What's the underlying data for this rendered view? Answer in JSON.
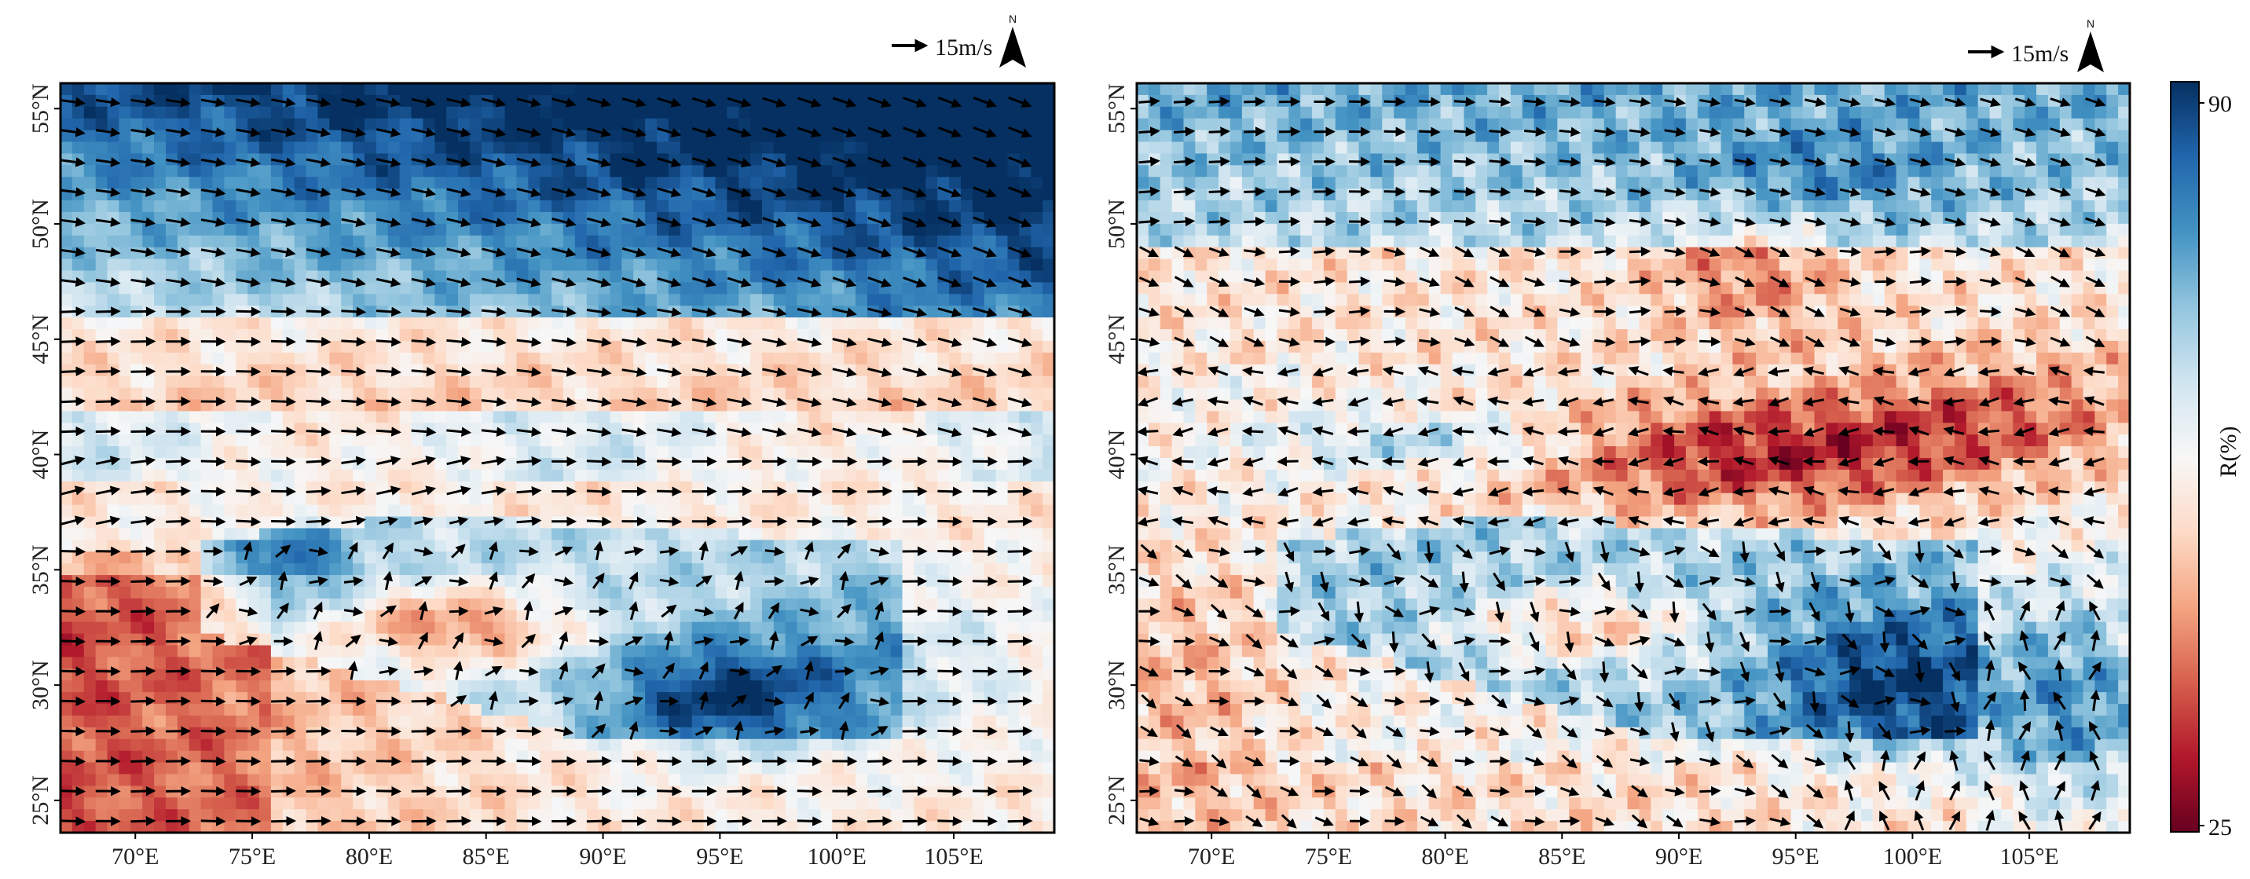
{
  "figure": {
    "colorbar": {
      "label": "R(%)",
      "max_label": "90",
      "min_label": "25",
      "colors": [
        "#67001f",
        "#b2182b",
        "#d6604d",
        "#f4a582",
        "#fddbc7",
        "#f7f7f7",
        "#d1e5f0",
        "#92c5de",
        "#4393c3",
        "#2166ac",
        "#053061"
      ]
    },
    "panels": [
      {
        "id": "left",
        "scale_label": "15m/s",
        "north_label": "N",
        "x_ticks": [
          "70°E",
          "75°E",
          "80°E",
          "85°E",
          "90°E",
          "95°E",
          "100°E",
          "105°E"
        ],
        "y_ticks": [
          "25°N",
          "30°N",
          "35°N",
          "40°N",
          "45°N",
          "50°N",
          "55°N"
        ],
        "regime": "westerly"
      },
      {
        "id": "right",
        "scale_label": "15m/s",
        "north_label": "N",
        "x_ticks": [
          "70°E",
          "75°E",
          "80°E",
          "85°E",
          "90°E",
          "95°E",
          "100°E",
          "105°E"
        ],
        "y_ticks": [
          "25°N",
          "30°N",
          "35°N",
          "40°N",
          "45°N",
          "50°N",
          "55°N"
        ],
        "regime": "mixed"
      }
    ]
  }
}
